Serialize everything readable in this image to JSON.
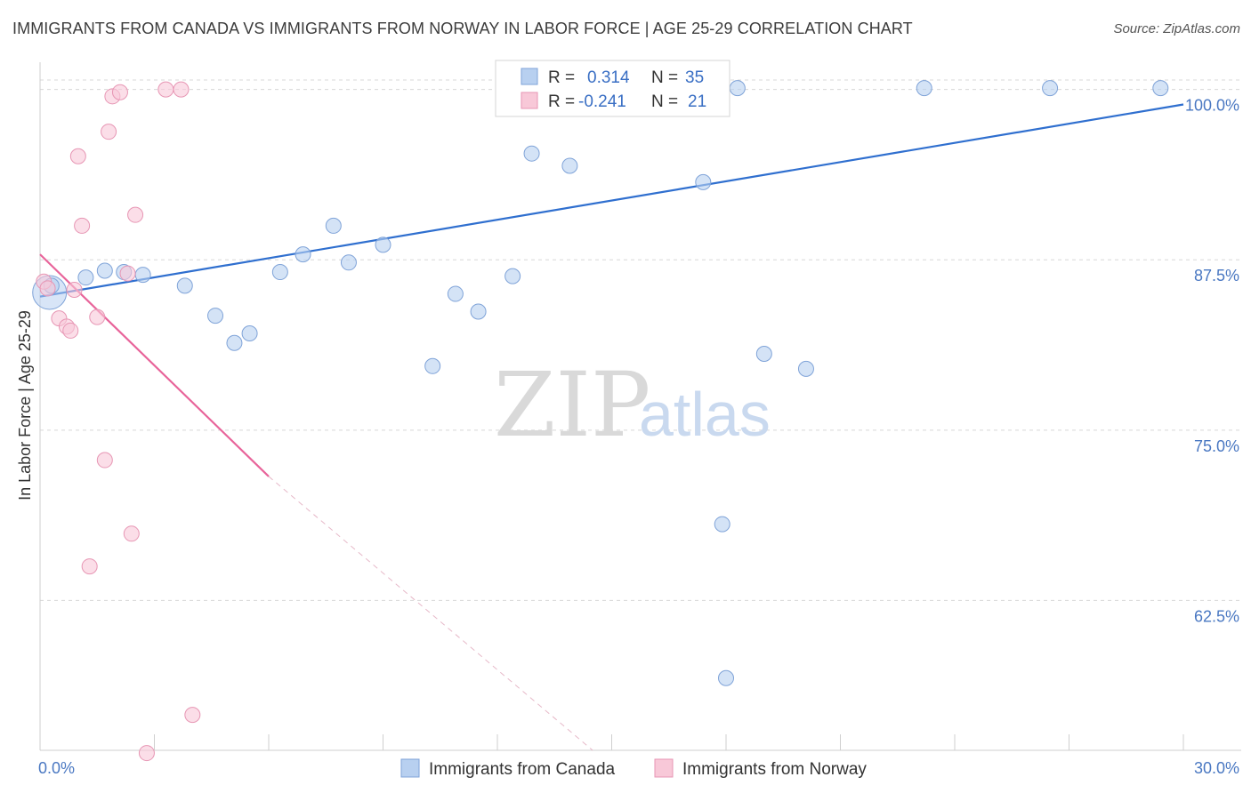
{
  "title": "IMMIGRANTS FROM CANADA VS IMMIGRANTS FROM NORWAY IN LABOR FORCE | AGE 25-29 CORRELATION CHART",
  "source": "Source: ZipAtlas.com",
  "watermark": {
    "zip": "ZIP",
    "atlas": "atlas"
  },
  "colors": {
    "canada_fill": "#b8d0f0",
    "canada_stroke": "#7fa3d8",
    "canada_line": "#2f6fcf",
    "norway_fill": "#f8c8d8",
    "norway_stroke": "#e796b4",
    "norway_line": "#e8649a",
    "tick": "#4a78c2",
    "grid": "#d8d8d8"
  },
  "stats": [
    {
      "r_label": "R =",
      "r_value": "0.314",
      "n_label": "N =",
      "n_value": "35"
    },
    {
      "r_label": "R =",
      "r_value": "-0.241",
      "n_label": "N =",
      "n_value": "21"
    }
  ],
  "chart_data": {
    "type": "scatter",
    "title": "IMMIGRANTS FROM CANADA VS IMMIGRANTS FROM NORWAY IN LABOR FORCE | AGE 25-29 CORRELATION CHART",
    "xlabel": "",
    "ylabel": "In Labor Force | Age 25-29",
    "xlim": [
      0,
      30
    ],
    "ylim": [
      51.5,
      102
    ],
    "x_ticks": [
      0,
      30
    ],
    "x_tick_labels": [
      "0.0%",
      "30.0%"
    ],
    "y_ticks": [
      62.5,
      75.0,
      87.5,
      100.0
    ],
    "y_tick_labels": [
      "62.5%",
      "75.0%",
      "87.5%",
      "100.0%"
    ],
    "grid": true,
    "legend_position": "bottom",
    "series": [
      {
        "name": "Immigrants from Canada",
        "points": [
          [
            0.3,
            85.6
          ],
          [
            1.2,
            86.2
          ],
          [
            1.7,
            86.7
          ],
          [
            2.2,
            86.6
          ],
          [
            2.7,
            86.4
          ],
          [
            3.8,
            85.6
          ],
          [
            4.6,
            83.4
          ],
          [
            5.1,
            81.4
          ],
          [
            5.5,
            82.1
          ],
          [
            6.3,
            86.6
          ],
          [
            6.9,
            87.9
          ],
          [
            7.7,
            90.0
          ],
          [
            8.1,
            87.3
          ],
          [
            9.0,
            88.6
          ],
          [
            10.3,
            79.7
          ],
          [
            10.9,
            85.0
          ],
          [
            11.5,
            83.7
          ],
          [
            12.4,
            86.3
          ],
          [
            12.9,
            95.3
          ],
          [
            13.4,
            100.1
          ],
          [
            13.9,
            94.4
          ],
          [
            14.6,
            100.1
          ],
          [
            15.2,
            100.1
          ],
          [
            15.8,
            100.1
          ],
          [
            16.6,
            100.1
          ],
          [
            17.1,
            100.1
          ],
          [
            17.4,
            93.2
          ],
          [
            17.9,
            68.1
          ],
          [
            18.0,
            56.8
          ],
          [
            18.3,
            100.1
          ],
          [
            19.0,
            80.6
          ],
          [
            20.1,
            79.5
          ],
          [
            23.2,
            100.1
          ],
          [
            26.5,
            100.1
          ],
          [
            29.4,
            100.1
          ]
        ],
        "trend": {
          "x": [
            0,
            30
          ],
          "y": [
            84.8,
            98.9
          ]
        }
      },
      {
        "name": "Immigrants from Norway",
        "points": [
          [
            0.1,
            85.9
          ],
          [
            0.2,
            85.4
          ],
          [
            0.5,
            83.2
          ],
          [
            0.7,
            82.6
          ],
          [
            0.8,
            82.3
          ],
          [
            0.9,
            85.3
          ],
          [
            1.0,
            95.1
          ],
          [
            1.1,
            90.0
          ],
          [
            1.3,
            65.0
          ],
          [
            1.5,
            83.3
          ],
          [
            1.7,
            72.8
          ],
          [
            1.8,
            96.9
          ],
          [
            1.9,
            99.5
          ],
          [
            2.1,
            99.8
          ],
          [
            2.3,
            86.5
          ],
          [
            2.4,
            67.4
          ],
          [
            2.5,
            90.8
          ],
          [
            2.8,
            51.3
          ],
          [
            3.3,
            100.0
          ],
          [
            3.7,
            100.0
          ],
          [
            4.0,
            54.1
          ]
        ],
        "trend": {
          "x": [
            0,
            6.0
          ],
          "y": [
            87.9,
            71.6
          ]
        },
        "trend_extension": {
          "x": [
            6.0,
            14.5
          ],
          "y": [
            71.6,
            51.5
          ]
        }
      }
    ]
  }
}
